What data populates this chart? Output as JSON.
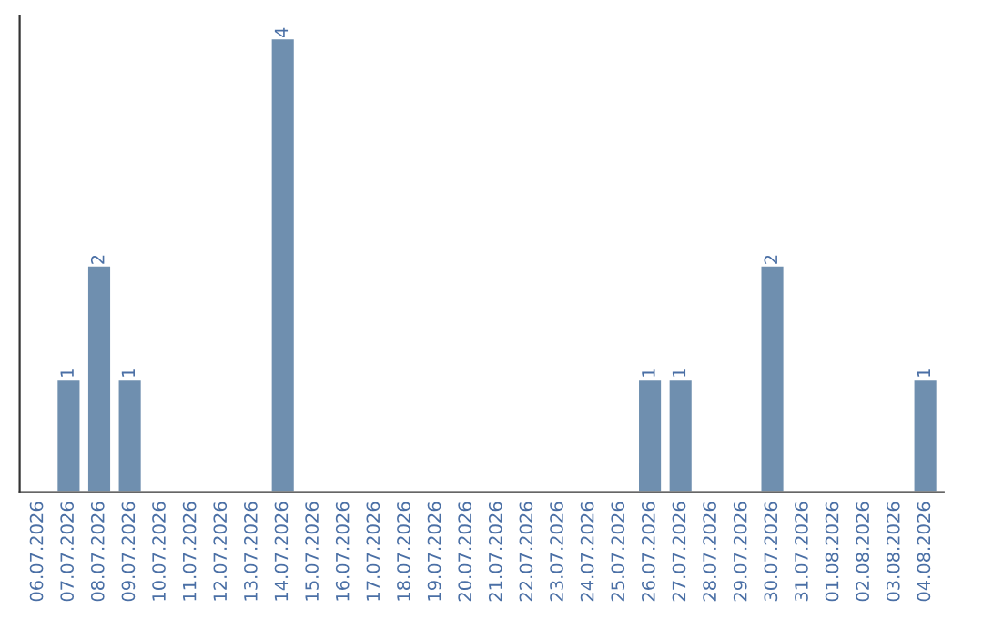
{
  "chart_data": {
    "type": "bar",
    "categories": [
      "06.07.2026",
      "07.07.2026",
      "08.07.2026",
      "09.07.2026",
      "10.07.2026",
      "11.07.2026",
      "12.07.2026",
      "13.07.2026",
      "14.07.2026",
      "15.07.2026",
      "16.07.2026",
      "17.07.2026",
      "18.07.2026",
      "19.07.2026",
      "20.07.2026",
      "21.07.2026",
      "22.07.2026",
      "23.07.2026",
      "24.07.2026",
      "25.07.2026",
      "26.07.2026",
      "27.07.2026",
      "28.07.2026",
      "29.07.2026",
      "30.07.2026",
      "31.07.2026",
      "01.08.2026",
      "02.08.2026",
      "03.08.2026",
      "04.08.2026"
    ],
    "values": [
      0,
      1,
      2,
      1,
      0,
      0,
      0,
      0,
      4,
      0,
      0,
      0,
      0,
      0,
      0,
      0,
      0,
      0,
      0,
      0,
      1,
      1,
      0,
      0,
      2,
      0,
      0,
      0,
      0,
      1
    ],
    "value_labels": [
      null,
      "1",
      "2",
      "1",
      null,
      null,
      null,
      null,
      "4",
      null,
      null,
      null,
      null,
      null,
      null,
      null,
      null,
      null,
      null,
      null,
      "1",
      "1",
      null,
      null,
      "2",
      null,
      null,
      null,
      null,
      "1"
    ],
    "color": "#6f8faf",
    "ylim": [
      0,
      4.2
    ],
    "tick_labels": "x",
    "grid": false,
    "legend": false
  }
}
